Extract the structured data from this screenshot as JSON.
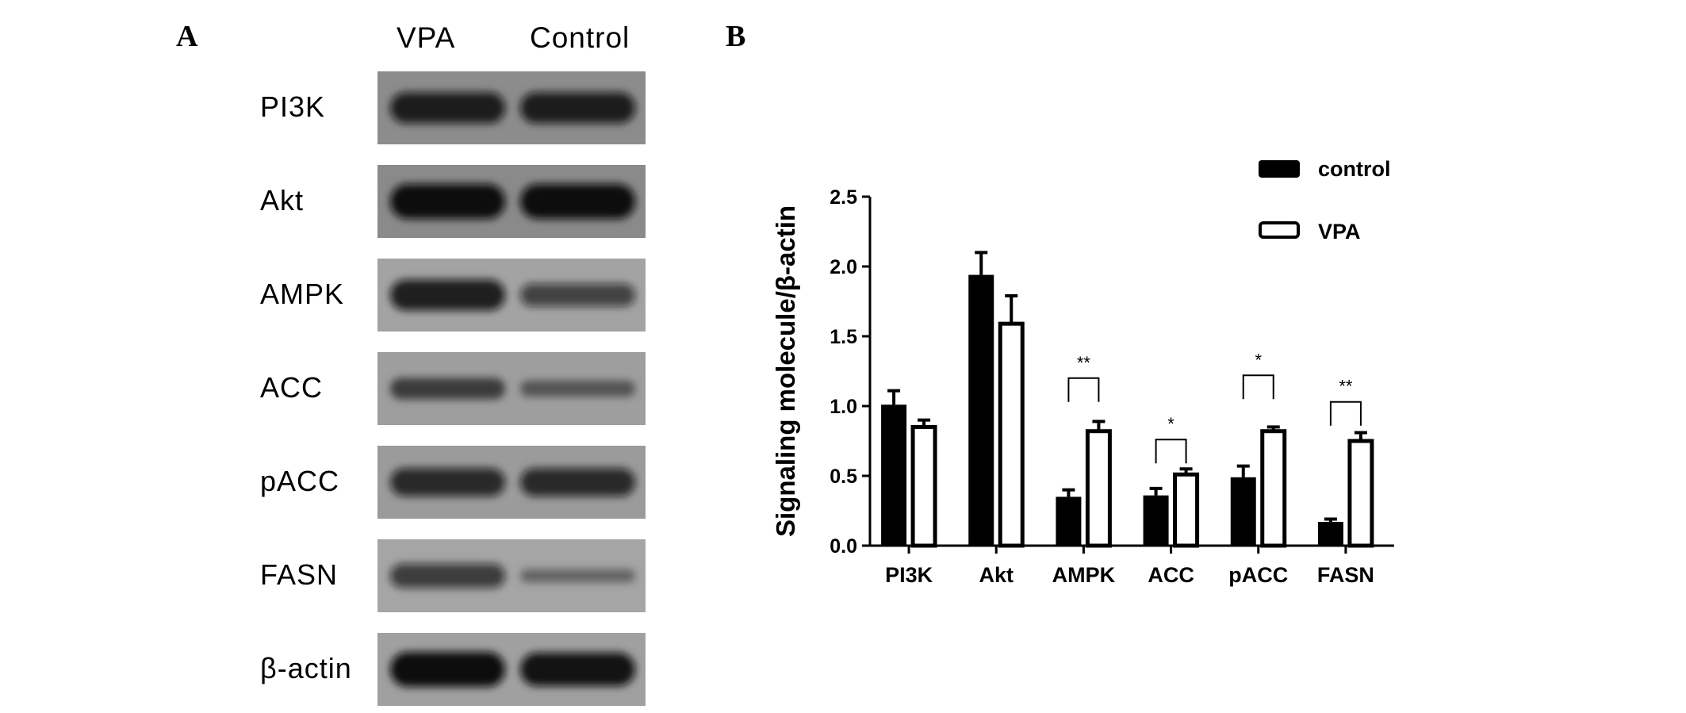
{
  "panel_a": {
    "letter": "A",
    "lanes": [
      "VPA",
      "Control"
    ],
    "blots": [
      {
        "label": "PI3K",
        "vpa_intensity": 0.85,
        "control_intensity": 0.85
      },
      {
        "label": "Akt",
        "vpa_intensity": 1.0,
        "control_intensity": 1.0
      },
      {
        "label": "AMPK",
        "vpa_intensity": 0.85,
        "control_intensity": 0.55
      },
      {
        "label": "ACC",
        "vpa_intensity": 0.5,
        "control_intensity": 0.3
      },
      {
        "label": "pACC",
        "vpa_intensity": 0.75,
        "control_intensity": 0.75
      },
      {
        "label": "FASN",
        "vpa_intensity": 0.6,
        "control_intensity": 0.2
      },
      {
        "label": "β-actin",
        "vpa_intensity": 1.0,
        "control_intensity": 0.95
      }
    ]
  },
  "panel_b": {
    "letter": "B"
  },
  "chart_data": {
    "type": "bar",
    "categories": [
      "PI3K",
      "Akt",
      "AMPK",
      "ACC",
      "pACC",
      "FASN"
    ],
    "series": [
      {
        "name": "control",
        "values": [
          1.01,
          1.94,
          0.35,
          0.36,
          0.49,
          0.17
        ],
        "errors": [
          0.1,
          0.16,
          0.05,
          0.05,
          0.08,
          0.02
        ],
        "fill": "#000000"
      },
      {
        "name": "VPA",
        "values": [
          0.85,
          1.59,
          0.82,
          0.51,
          0.82,
          0.75
        ],
        "errors": [
          0.05,
          0.2,
          0.07,
          0.04,
          0.03,
          0.06
        ],
        "fill": "#ffffff"
      }
    ],
    "ylabel": "Signaling molecule/β-actin",
    "ylim": [
      0,
      2.5
    ],
    "yticks": [
      "0.0",
      "0.5",
      "1.0",
      "1.5",
      "2.0",
      "2.5"
    ],
    "significance": [
      {
        "category": "AMPK",
        "mark": "**",
        "bracket_level": 1.2
      },
      {
        "category": "ACC",
        "mark": "*",
        "bracket_level": 0.76
      },
      {
        "category": "pACC",
        "mark": "*",
        "bracket_level": 1.22
      },
      {
        "category": "FASN",
        "mark": "**",
        "bracket_level": 1.03
      }
    ],
    "legend": {
      "position": "top-right",
      "entries": [
        "control",
        "VPA"
      ]
    },
    "grid": false
  }
}
